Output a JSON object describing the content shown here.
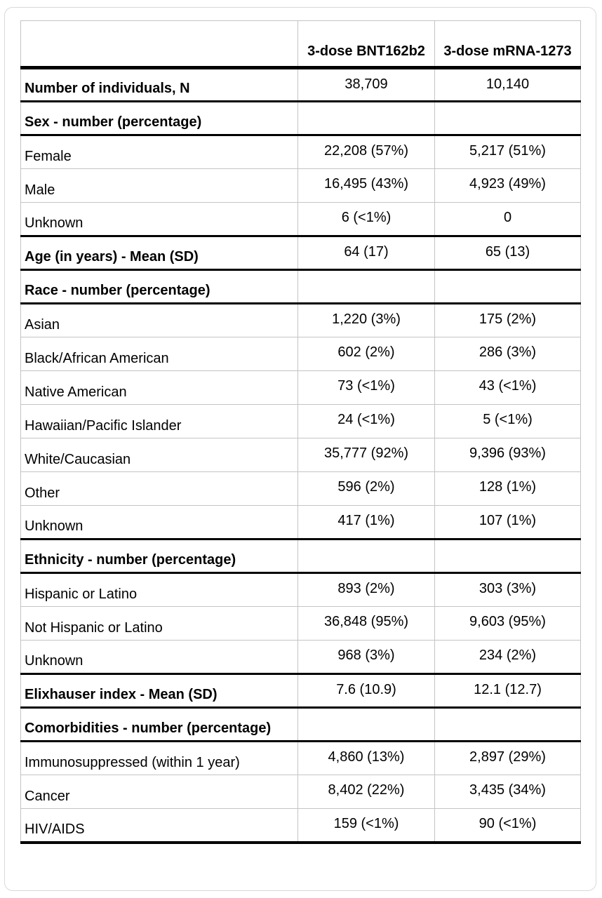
{
  "colors": {
    "text": "#000000",
    "heavy_divider": "#000000",
    "grid_line": "#c4c4c4",
    "card_border": "#d9d9d9",
    "background": "#ffffff"
  },
  "table": {
    "header": {
      "col1": "",
      "col2": "3-dose BNT162b2",
      "col3": "3-dose mRNA-1273"
    },
    "rows": [
      {
        "label": "Number of individuals, N",
        "v1": "38,709",
        "v2": "10,140",
        "style": "bold",
        "divider_below": true
      },
      {
        "label": "Sex - number (percentage)",
        "v1": "",
        "v2": "",
        "style": "section",
        "divider_below": true
      },
      {
        "label": "Female",
        "v1": "22,208 (57%)",
        "v2": "5,217 (51%)",
        "style": "normal",
        "divider_below": false
      },
      {
        "label": "Male",
        "v1": "16,495 (43%)",
        "v2": "4,923 (49%)",
        "style": "normal",
        "divider_below": false
      },
      {
        "label": "Unknown",
        "v1": "6 (<1%)",
        "v2": "0",
        "style": "normal",
        "divider_below": true
      },
      {
        "label": "Age (in years) - Mean (SD)",
        "v1": "64 (17)",
        "v2": "65 (13)",
        "style": "bold",
        "divider_below": true
      },
      {
        "label": "Race - number (percentage)",
        "v1": "",
        "v2": "",
        "style": "section",
        "divider_below": true
      },
      {
        "label": "Asian",
        "v1": "1,220 (3%)",
        "v2": "175 (2%)",
        "style": "normal",
        "divider_below": false
      },
      {
        "label": "Black/African American",
        "v1": "602 (2%)",
        "v2": "286 (3%)",
        "style": "normal",
        "divider_below": false
      },
      {
        "label": "Native American",
        "v1": "73 (<1%)",
        "v2": "43 (<1%)",
        "style": "normal",
        "divider_below": false
      },
      {
        "label": "Hawaiian/Pacific Islander",
        "v1": "24 (<1%)",
        "v2": "5 (<1%)",
        "style": "normal",
        "divider_below": false
      },
      {
        "label": "White/Caucasian",
        "v1": "35,777 (92%)",
        "v2": "9,396 (93%)",
        "style": "normal",
        "divider_below": false
      },
      {
        "label": "Other",
        "v1": "596 (2%)",
        "v2": "128 (1%)",
        "style": "normal",
        "divider_below": false
      },
      {
        "label": "Unknown",
        "v1": "417 (1%)",
        "v2": "107 (1%)",
        "style": "normal",
        "divider_below": true
      },
      {
        "label": "Ethnicity - number (percentage)",
        "v1": "",
        "v2": "",
        "style": "section",
        "divider_below": true
      },
      {
        "label": "Hispanic or Latino",
        "v1": "893 (2%)",
        "v2": "303 (3%)",
        "style": "normal",
        "divider_below": false
      },
      {
        "label": "Not Hispanic or Latino",
        "v1": "36,848 (95%)",
        "v2": "9,603 (95%)",
        "style": "normal",
        "divider_below": false
      },
      {
        "label": "Unknown",
        "v1": "968 (3%)",
        "v2": "234 (2%)",
        "style": "normal",
        "divider_below": true
      },
      {
        "label": "Elixhauser index - Mean (SD)",
        "v1": "7.6 (10.9)",
        "v2": "12.1 (12.7)",
        "style": "bold",
        "divider_below": true
      },
      {
        "label": "Comorbidities - number (percentage)",
        "v1": "",
        "v2": "",
        "style": "section",
        "divider_below": true
      },
      {
        "label": "Immunosuppressed (within 1 year)",
        "v1": "4,860 (13%)",
        "v2": "2,897 (29%)",
        "style": "normal",
        "divider_below": false
      },
      {
        "label": "Cancer",
        "v1": "8,402 (22%)",
        "v2": "3,435 (34%)",
        "style": "normal",
        "divider_below": false
      },
      {
        "label": "HIV/AIDS",
        "v1": "159 (<1%)",
        "v2": "90 (<1%)",
        "style": "normal",
        "divider_below": true
      }
    ]
  }
}
